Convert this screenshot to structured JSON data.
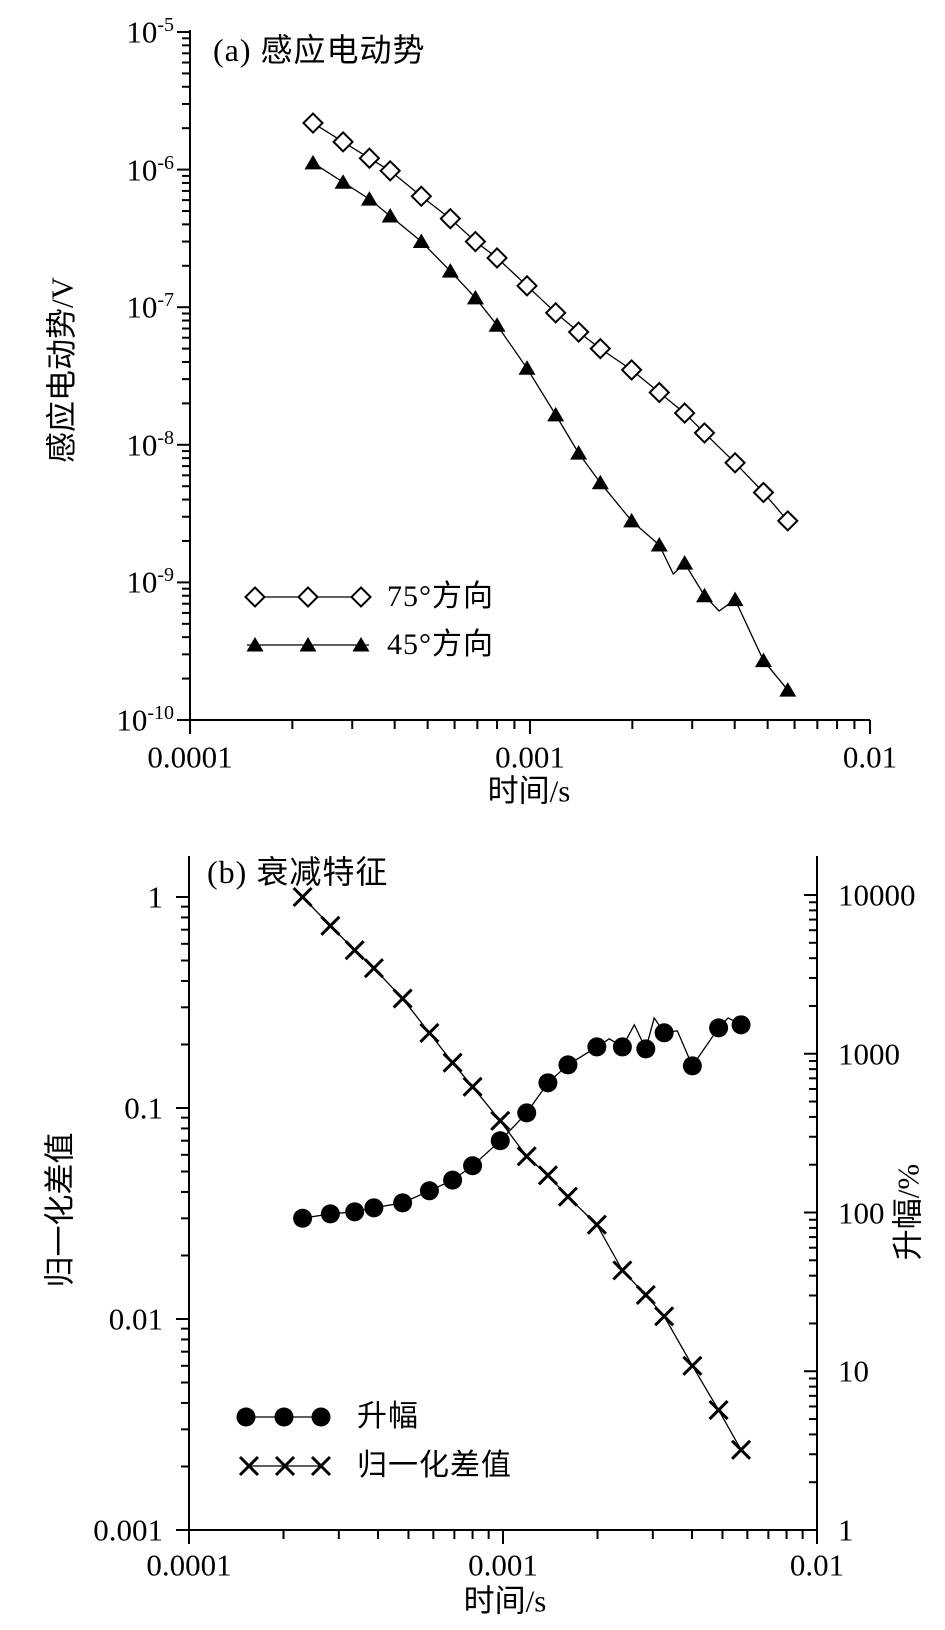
{
  "figure": {
    "background": "#ffffff",
    "ink": "#000000"
  },
  "chart_data": [
    {
      "id": "a",
      "type": "line",
      "title": "(a) 感应电动势",
      "xlabel": "时间/s",
      "ylabel": "感应电动势/V",
      "x_scale": "log",
      "y_scale": "log",
      "xlim": [
        0.0001,
        0.01
      ],
      "ylim": [
        1e-10,
        1e-05
      ],
      "x_tick_labels": [
        "0.0001",
        "0.001",
        "0.01"
      ],
      "y_tick_base": "10",
      "y_tick_exponents": [
        -5,
        -6,
        -7,
        -8,
        -9,
        -10
      ],
      "grid": false,
      "legend_position": "lower-left",
      "x": [
        0.00023,
        0.000282,
        0.000337,
        0.000388,
        0.000479,
        0.000583,
        0.000691,
        0.0008,
        0.00098,
        0.00119,
        0.00139,
        0.00161,
        0.00199,
        0.0024,
        0.00285,
        0.00326,
        0.00401,
        0.00486,
        0.00573
      ],
      "series": [
        {
          "name": "75°方向",
          "marker": "diamond-open",
          "values": [
            2.18e-06,
            1.59e-06,
            1.21e-06,
            9.8e-07,
            6.4e-07,
            4.4e-07,
            3e-07,
            2.28e-07,
            1.43e-07,
            9.1e-08,
            6.6e-08,
            5e-08,
            3.5e-08,
            2.4e-08,
            1.7e-08,
            1.22e-08,
            7.4e-09,
            4.5e-09,
            2.8e-09
          ],
          "extra_line_vertices": []
        },
        {
          "name": "45°方向",
          "marker": "triangle-filled",
          "values": [
            1.12e-06,
            8.1e-07,
            6.1e-07,
            4.6e-07,
            3e-07,
            1.83e-07,
            1.17e-07,
            7.4e-08,
            3.6e-08,
            1.65e-08,
            8.7e-09,
            5.3e-09,
            2.8e-09,
            1.87e-09,
            1.38e-09,
            8e-10,
            7.5e-10,
            2.7e-10,
            1.65e-10
          ],
          "extra_line_vertices": [
            [
              0.00264,
              1.15e-09
            ],
            [
              0.0036,
              6.2e-10
            ]
          ]
        }
      ]
    },
    {
      "id": "b",
      "type": "line-dual-axis",
      "title": "(b) 衰减特征",
      "xlabel": "时间/s",
      "ylabel_left": "归一化差值",
      "ylabel_right": "升幅/%",
      "x_scale": "log",
      "y_scale": "log",
      "xlim": [
        0.0001,
        0.01
      ],
      "ylim_left": [
        0.001,
        1
      ],
      "ylim_right": [
        1,
        10000
      ],
      "x_tick_labels": [
        "0.0001",
        "0.001",
        "0.01"
      ],
      "y_tick_labels_left": [
        "1",
        "0.1",
        "0.01",
        "0.001"
      ],
      "y_tick_labels_right": [
        "10000",
        "1000",
        "100",
        "10",
        "1"
      ],
      "grid": false,
      "legend_position": "lower-left",
      "x": [
        0.00023,
        0.000282,
        0.000337,
        0.000388,
        0.000479,
        0.000583,
        0.000691,
        0.0008,
        0.00098,
        0.00119,
        0.00139,
        0.00161,
        0.00199,
        0.0024,
        0.00285,
        0.00326,
        0.00401,
        0.00486,
        0.00573
      ],
      "series": [
        {
          "name": "升幅",
          "axis": "right",
          "marker": "circle-filled",
          "values": [
            92,
            98,
            101,
            107,
            115,
            137,
            160,
            197,
            283,
            424,
            656,
            851,
            1104,
            1104,
            1073,
            1355,
            839,
            1455,
            1521
          ],
          "extra_line_vertices": [
            [
              0.00218,
              1242
            ],
            [
              0.00262,
              1521
            ],
            [
              0.00303,
              1683
            ],
            [
              0.00359,
              1394
            ],
            [
              0.00521,
              1683
            ]
          ]
        },
        {
          "name": "归一化差值",
          "axis": "left",
          "marker": "x",
          "values": [
            1.0,
            0.73,
            0.56,
            0.46,
            0.33,
            0.227,
            0.164,
            0.126,
            0.087,
            0.059,
            0.048,
            0.038,
            0.028,
            0.017,
            0.013,
            0.0103,
            0.006,
            0.0037,
            0.0024
          ],
          "extra_line_vertices": []
        }
      ]
    }
  ]
}
